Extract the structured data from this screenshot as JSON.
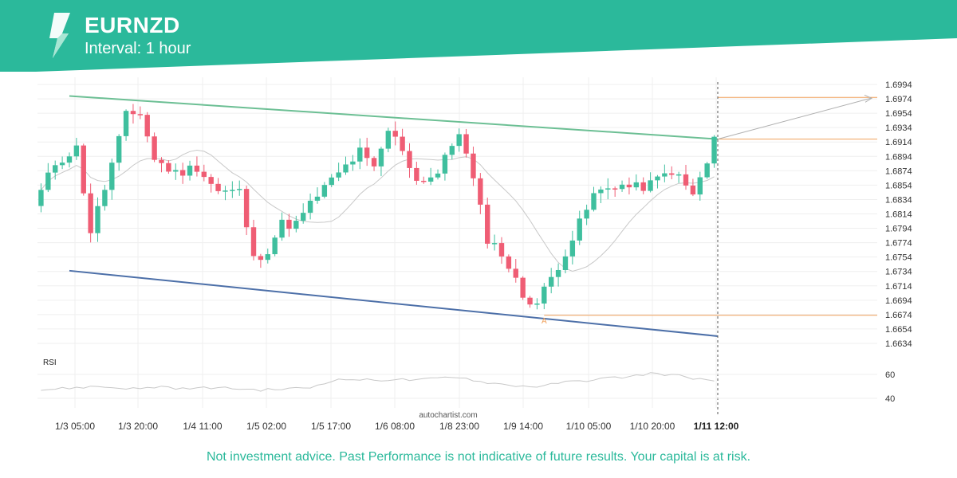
{
  "header": {
    "symbol": "EURNZD",
    "interval": "Interval: 1 hour",
    "logo_icon": "autochartist-logo-icon"
  },
  "colors": {
    "brand": "#2bb99b",
    "bull": "#3fbf9e",
    "bear": "#ef5d74",
    "resistance": "#6cbf94",
    "support": "#4c6fa8",
    "level": "#f0a05a",
    "ma": "#c8c8c8",
    "rsi": "#c8c8c8",
    "projection": "#b0b0b0",
    "grid": "#efefef"
  },
  "chart_data": {
    "type": "candlestick",
    "symbol": "EURNZD",
    "y_ticks": [
      "1.6994",
      "1.6974",
      "1.6954",
      "1.6934",
      "1.6914",
      "1.6894",
      "1.6874",
      "1.6854",
      "1.6834",
      "1.6814",
      "1.6794",
      "1.6774",
      "1.6754",
      "1.6734",
      "1.6714",
      "1.6694",
      "1.6674",
      "1.6654",
      "1.6634"
    ],
    "ylim": [
      1.6624,
      1.7004
    ],
    "x_ticks": [
      "1/3 05:00",
      "1/3 20:00",
      "1/4 11:00",
      "1/5 02:00",
      "1/5 17:00",
      "1/6 08:00",
      "1/8 23:00",
      "1/9 14:00",
      "1/10 05:00",
      "1/10 20:00",
      "1/11 12:00"
    ],
    "bar_count": 96,
    "close_path": [
      [
        0,
        1.6825
      ],
      [
        3,
        1.6885
      ],
      [
        6,
        1.6905
      ],
      [
        8,
        1.679
      ],
      [
        10,
        1.685
      ],
      [
        13,
        1.695
      ],
      [
        15,
        1.6955
      ],
      [
        17,
        1.689
      ],
      [
        20,
        1.687
      ],
      [
        23,
        1.688
      ],
      [
        26,
        1.6845
      ],
      [
        29,
        1.6845
      ],
      [
        31,
        1.675
      ],
      [
        33,
        1.6765
      ],
      [
        35,
        1.68
      ],
      [
        37,
        1.68
      ],
      [
        40,
        1.684
      ],
      [
        43,
        1.687
      ],
      [
        46,
        1.69
      ],
      [
        48,
        1.6875
      ],
      [
        50,
        1.693
      ],
      [
        52,
        1.6905
      ],
      [
        54,
        1.686
      ],
      [
        57,
        1.687
      ],
      [
        60,
        1.693
      ],
      [
        62,
        1.686
      ],
      [
        64,
        1.678
      ],
      [
        66,
        1.676
      ],
      [
        69,
        1.67
      ],
      [
        71,
        1.669
      ],
      [
        73,
        1.6725
      ],
      [
        76,
        1.678
      ],
      [
        79,
        1.684
      ],
      [
        82,
        1.6855
      ],
      [
        85,
        1.685
      ],
      [
        87,
        1.6855
      ],
      [
        90,
        1.6875
      ],
      [
        93,
        1.684
      ],
      [
        95,
        1.6885
      ],
      [
        96,
        1.6918
      ]
    ],
    "resistance_line": {
      "from_bar": 4,
      "from": 1.6978,
      "to_bar": 95.5,
      "to": 1.6918
    },
    "support_line": {
      "from_bar": 4,
      "from": 1.6735,
      "to_bar": 95.5,
      "to": 1.6644
    },
    "target_level": 1.6976,
    "breakout_level": 1.6918,
    "pivot_level": 1.6673,
    "pivot_label": "A",
    "pivot_bar": 71,
    "rsi": {
      "label": "RSI",
      "y_ticks": [
        "60",
        "40"
      ],
      "ylim": [
        32,
        72
      ],
      "path": [
        [
          0,
          47
        ],
        [
          5,
          49
        ],
        [
          8,
          50
        ],
        [
          10,
          49
        ],
        [
          14,
          48
        ],
        [
          17,
          50
        ],
        [
          20,
          48
        ],
        [
          24,
          49
        ],
        [
          28,
          48
        ],
        [
          31,
          47
        ],
        [
          35,
          48
        ],
        [
          38,
          49
        ],
        [
          41,
          55
        ],
        [
          44,
          56
        ],
        [
          47,
          55
        ],
        [
          50,
          56
        ],
        [
          53,
          55
        ],
        [
          56,
          57
        ],
        [
          59,
          58
        ],
        [
          62,
          54
        ],
        [
          66,
          51
        ],
        [
          69,
          50
        ],
        [
          71,
          50
        ],
        [
          73,
          53
        ],
        [
          77,
          55
        ],
        [
          80,
          57
        ],
        [
          83,
          58
        ],
        [
          86,
          61
        ],
        [
          88,
          60
        ],
        [
          90,
          59
        ],
        [
          92,
          57
        ],
        [
          94,
          55
        ],
        [
          96,
          52
        ]
      ]
    },
    "watermark": "autochartist.com"
  },
  "footer": {
    "disclaimer": "Not investment advice. Past Performance is not indicative of future results. Your capital is at risk."
  }
}
